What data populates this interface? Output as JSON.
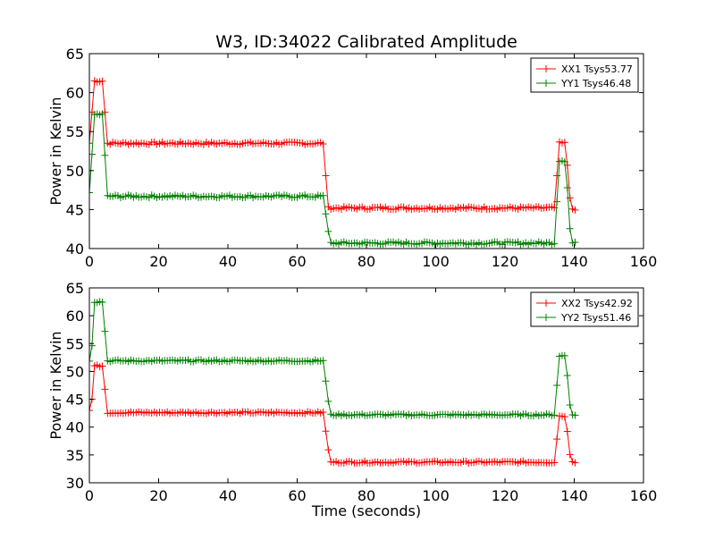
{
  "chart_data": {
    "type": "line",
    "title": "W3, ID:34022 Calibrated Amplitude",
    "xlabel": "Time (seconds)",
    "subplots": [
      {
        "ylabel": "Power in Kelvin",
        "xlim": [
          0,
          160
        ],
        "ylim": [
          40,
          65
        ],
        "xticks": [
          0,
          20,
          40,
          60,
          80,
          100,
          120,
          140,
          160
        ],
        "yticks": [
          40,
          45,
          50,
          55,
          60,
          65
        ],
        "legend_position": "top-right",
        "series": [
          {
            "name": "XX1 Tsys53.77",
            "color": "#ff0000",
            "segments": [
              {
                "from": 0,
                "to": 0.5,
                "value": 53.5
              },
              {
                "from": 1,
                "to": 4,
                "value": 61.5
              },
              {
                "from": 5,
                "to": 67.5,
                "value": 53.5
              },
              {
                "from": 69,
                "to": 134.5,
                "value": 45.2
              },
              {
                "from": 135.5,
                "to": 137.5,
                "value": 53.5
              },
              {
                "from": 139,
                "to": 140.5,
                "value": 45.1
              }
            ]
          },
          {
            "name": "YY1 Tsys46.48",
            "color": "#008000",
            "segments": [
              {
                "from": 0,
                "to": 0.5,
                "value": 47.0
              },
              {
                "from": 1,
                "to": 4,
                "value": 57.2
              },
              {
                "from": 5,
                "to": 67.5,
                "value": 46.7
              },
              {
                "from": 69.5,
                "to": 134.5,
                "value": 40.7
              },
              {
                "from": 135.5,
                "to": 137.5,
                "value": 51.3
              },
              {
                "from": 139,
                "to": 140.5,
                "value": 40.8
              }
            ]
          }
        ]
      },
      {
        "ylabel": "Power in Kelvin",
        "xlim": [
          0,
          160
        ],
        "ylim": [
          30,
          65
        ],
        "xticks": [
          0,
          20,
          40,
          60,
          80,
          100,
          120,
          140,
          160
        ],
        "yticks": [
          30,
          35,
          40,
          45,
          50,
          55,
          60,
          65
        ],
        "legend_position": "top-right",
        "series": [
          {
            "name": "XX2 Tsys42.92",
            "color": "#ff0000",
            "segments": [
              {
                "from": 0,
                "to": 0.5,
                "value": 43.0
              },
              {
                "from": 1.5,
                "to": 4,
                "value": 51.0
              },
              {
                "from": 5,
                "to": 67.5,
                "value": 42.6
              },
              {
                "from": 69.5,
                "to": 134.5,
                "value": 33.7
              },
              {
                "from": 135.5,
                "to": 137.5,
                "value": 42.0
              },
              {
                "from": 139,
                "to": 140.5,
                "value": 33.7
              }
            ]
          },
          {
            "name": "YY2 Tsys51.46",
            "color": "#008000",
            "segments": [
              {
                "from": 0,
                "to": 0.5,
                "value": 52.0
              },
              {
                "from": 1.5,
                "to": 4,
                "value": 62.5
              },
              {
                "from": 5,
                "to": 67.5,
                "value": 51.9
              },
              {
                "from": 69.5,
                "to": 134.5,
                "value": 42.2
              },
              {
                "from": 135.5,
                "to": 137.5,
                "value": 52.8
              },
              {
                "from": 139,
                "to": 140.5,
                "value": 42.2
              }
            ]
          }
        ]
      }
    ]
  }
}
